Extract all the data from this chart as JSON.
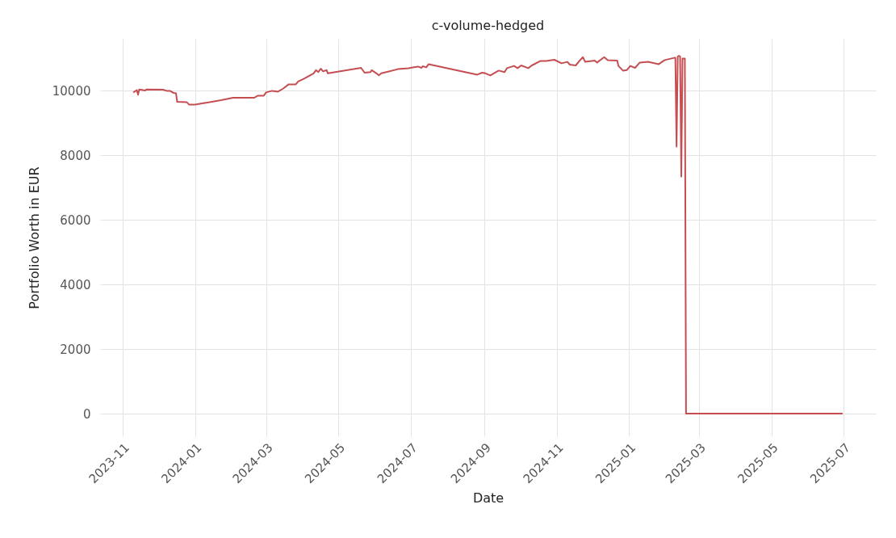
{
  "chart_data": {
    "type": "line",
    "title": "c-volume-hedged",
    "xlabel": "Date",
    "ylabel": "Portfolio Worth in EUR",
    "x": [
      "2023-11-10",
      "2023-11-13",
      "2023-11-14",
      "2023-11-15",
      "2023-11-20",
      "2023-11-21",
      "2023-12-05",
      "2023-12-08",
      "2023-12-11",
      "2023-12-14",
      "2023-12-16",
      "2023-12-17",
      "2023-12-25",
      "2023-12-27",
      "2024-01-01",
      "2024-01-09",
      "2024-01-23",
      "2024-02-02",
      "2024-02-20",
      "2024-02-23",
      "2024-02-28",
      "2024-03-01",
      "2024-03-06",
      "2024-03-11",
      "2024-03-15",
      "2024-03-20",
      "2024-03-26",
      "2024-03-28",
      "2024-04-02",
      "2024-04-10",
      "2024-04-12",
      "2024-04-14",
      "2024-04-16",
      "2024-04-18",
      "2024-04-21",
      "2024-04-22",
      "2024-05-20",
      "2024-05-23",
      "2024-05-28",
      "2024-05-29",
      "2024-06-02",
      "2024-06-04",
      "2024-06-06",
      "2024-06-11",
      "2024-06-20",
      "2024-06-29",
      "2024-07-07",
      "2024-07-10",
      "2024-07-11",
      "2024-07-14",
      "2024-07-16",
      "2024-08-26",
      "2024-08-30",
      "2024-09-02",
      "2024-09-06",
      "2024-09-13",
      "2024-09-18",
      "2024-09-20",
      "2024-09-26",
      "2024-09-29",
      "2024-10-02",
      "2024-10-08",
      "2024-10-11",
      "2024-10-18",
      "2024-10-23",
      "2024-10-30",
      "2024-11-05",
      "2024-11-10",
      "2024-11-12",
      "2024-11-17",
      "2024-11-20",
      "2024-11-23",
      "2024-11-25",
      "2024-12-03",
      "2024-12-05",
      "2024-12-11",
      "2024-12-14",
      "2024-12-22",
      "2024-12-23",
      "2024-12-27",
      "2024-12-30",
      "2025-01-02",
      "2025-01-06",
      "2025-01-10",
      "2025-01-17",
      "2025-01-26",
      "2025-01-31",
      "2025-02-08",
      "2025-02-09",
      "2025-02-10",
      "2025-02-11",
      "2025-02-12",
      "2025-02-13",
      "2025-02-14",
      "2025-02-15",
      "2025-02-17",
      "2025-02-18",
      "2025-06-30"
    ],
    "series": [
      {
        "color": "#c44e52",
        "values": [
          9940,
          10010,
          9870,
          10030,
          10000,
          10030,
          10025,
          9990,
          9985,
          9925,
          9910,
          9650,
          9640,
          9565,
          9560,
          9610,
          9700,
          9775,
          9775,
          9840,
          9840,
          9940,
          9990,
          9965,
          10050,
          10190,
          10190,
          10280,
          10365,
          10530,
          10630,
          10570,
          10675,
          10590,
          10630,
          10530,
          10700,
          10550,
          10570,
          10630,
          10530,
          10470,
          10530,
          10575,
          10660,
          10690,
          10740,
          10700,
          10750,
          10715,
          10815,
          10490,
          10550,
          10530,
          10465,
          10615,
          10570,
          10690,
          10760,
          10690,
          10775,
          10690,
          10775,
          10910,
          10910,
          10950,
          10840,
          10885,
          10800,
          10775,
          10910,
          11030,
          10885,
          10925,
          10865,
          11030,
          10940,
          10925,
          10760,
          10610,
          10630,
          10760,
          10700,
          10865,
          10885,
          10815,
          10940,
          11010,
          11010,
          8260,
          11050,
          11075,
          11050,
          7340,
          10985,
          10985,
          0,
          0
        ]
      }
    ],
    "xlim": [
      "2023-10-13",
      "2025-07-28"
    ],
    "xticks": [
      "2023-11",
      "2024-01",
      "2024-03",
      "2024-05",
      "2024-07",
      "2024-09",
      "2024-11",
      "2025-01",
      "2025-03",
      "2025-05",
      "2025-07"
    ],
    "ylim": [
      -700,
      11600
    ],
    "yticks": [
      0,
      2000,
      4000,
      6000,
      8000,
      10000
    ],
    "grid": true,
    "marker": "none",
    "line_style": "solid"
  }
}
